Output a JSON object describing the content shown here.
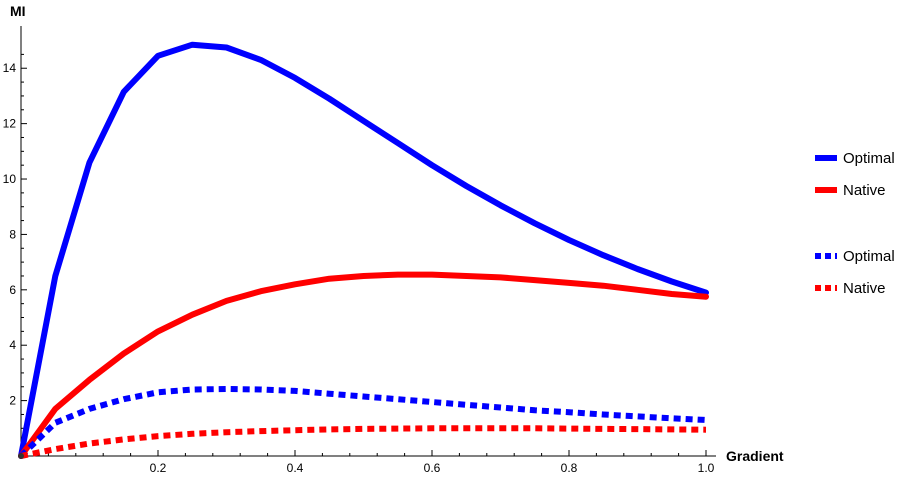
{
  "chart_data": {
    "type": "line",
    "title": "",
    "xlabel": "Gradient",
    "ylabel": "MI",
    "xlim": [
      0,
      1.0
    ],
    "ylim": [
      0,
      15.2
    ],
    "grid": false,
    "legend_position": "right",
    "x_ticks": [
      0.2,
      0.4,
      0.6,
      0.8,
      1.0
    ],
    "x_tick_labels": [
      "0.2",
      "0.4",
      "0.6",
      "0.8",
      "1.0"
    ],
    "y_ticks": [
      2,
      4,
      6,
      8,
      10,
      12,
      14
    ],
    "y_tick_labels": [
      "2",
      "4",
      "6",
      "8",
      "10",
      "12",
      "14"
    ],
    "x": [
      0,
      0.05,
      0.1,
      0.15,
      0.2,
      0.25,
      0.3,
      0.35,
      0.4,
      0.45,
      0.5,
      0.55,
      0.6,
      0.65,
      0.7,
      0.75,
      0.8,
      0.85,
      0.9,
      0.95,
      1.0
    ],
    "series": [
      {
        "name": "Optimal",
        "color": "#0000ff",
        "style": "solid",
        "values": [
          0,
          6.5,
          10.6,
          13.15,
          14.45,
          14.85,
          14.75,
          14.3,
          13.65,
          12.9,
          12.1,
          11.3,
          10.5,
          9.75,
          9.05,
          8.4,
          7.8,
          7.25,
          6.75,
          6.3,
          5.9
        ]
      },
      {
        "name": "Native",
        "color": "#ff0000",
        "style": "solid",
        "values": [
          0,
          1.7,
          2.75,
          3.7,
          4.5,
          5.1,
          5.6,
          5.95,
          6.2,
          6.4,
          6.5,
          6.55,
          6.55,
          6.5,
          6.45,
          6.35,
          6.25,
          6.15,
          6.0,
          5.85,
          5.75
        ]
      },
      {
        "name": "Optimal",
        "color": "#0000ff",
        "style": "dotted",
        "values": [
          0,
          1.2,
          1.7,
          2.05,
          2.3,
          2.4,
          2.42,
          2.4,
          2.35,
          2.25,
          2.15,
          2.05,
          1.95,
          1.85,
          1.75,
          1.65,
          1.58,
          1.5,
          1.43,
          1.36,
          1.3
        ]
      },
      {
        "name": "Native",
        "color": "#ff0000",
        "style": "dotted",
        "values": [
          0,
          0.25,
          0.45,
          0.6,
          0.72,
          0.8,
          0.86,
          0.9,
          0.93,
          0.96,
          0.98,
          0.99,
          1.0,
          1.0,
          1.0,
          1.0,
          0.99,
          0.98,
          0.97,
          0.96,
          0.95
        ]
      }
    ]
  }
}
